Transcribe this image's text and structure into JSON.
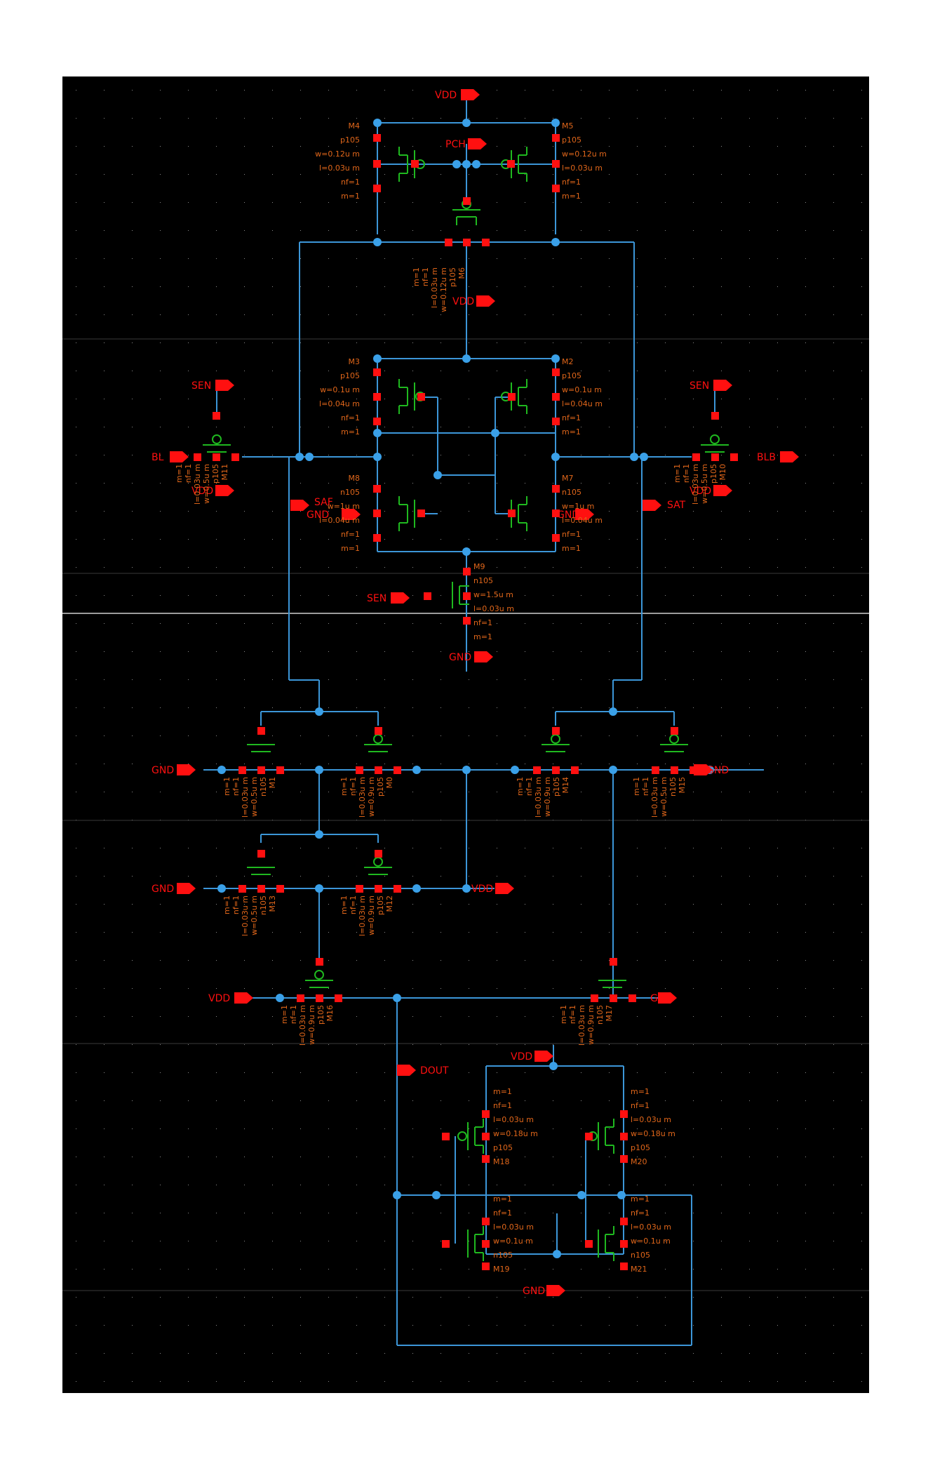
{
  "colors": {
    "background": "#000000",
    "wire": "#3c96d8",
    "device": "#1fb81f",
    "terminal": "#ff1010",
    "label": "#e0661a",
    "net_dot": "#3aa0e8"
  },
  "pins": [
    {
      "id": "vdd_top",
      "text": "VDD"
    },
    {
      "id": "pch",
      "text": "PCH"
    },
    {
      "id": "vdd_m6",
      "text": "VDD"
    },
    {
      "id": "sen_l",
      "text": "SEN"
    },
    {
      "id": "bl",
      "text": "BL"
    },
    {
      "id": "vdd_l",
      "text": "VDD"
    },
    {
      "id": "sen_r",
      "text": "SEN"
    },
    {
      "id": "blb",
      "text": "BLB"
    },
    {
      "id": "vdd_r",
      "text": "VDD"
    },
    {
      "id": "saf",
      "text": "SAF"
    },
    {
      "id": "gnd_sa_l",
      "text": "GND"
    },
    {
      "id": "gnd_sa_r",
      "text": "GND"
    },
    {
      "id": "sat",
      "text": "SAT"
    },
    {
      "id": "sen_m9",
      "text": "SEN"
    },
    {
      "id": "gnd_m9",
      "text": "GND"
    },
    {
      "id": "gnd_row1_l",
      "text": "GND"
    },
    {
      "id": "gnd_row1_r",
      "text": "GND"
    },
    {
      "id": "gnd_row2_l",
      "text": "GND"
    },
    {
      "id": "vdd_row2",
      "text": "VDD"
    },
    {
      "id": "vdd_row3",
      "text": "VDD"
    },
    {
      "id": "gnd_row3",
      "text": "GND"
    },
    {
      "id": "dout",
      "text": "DOUT"
    },
    {
      "id": "vdd_bot",
      "text": "VDD"
    },
    {
      "id": "gnd_bot",
      "text": "GND"
    }
  ],
  "devices": [
    {
      "id": "M4",
      "lines": [
        "M4",
        "p105",
        "w=0.12u m",
        "l=0.03u m",
        "nf=1",
        "m=1"
      ]
    },
    {
      "id": "M5",
      "lines": [
        "M5",
        "p105",
        "w=0.12u m",
        "l=0.03u m",
        "nf=1",
        "m=1"
      ]
    },
    {
      "id": "M6",
      "lines": [
        "m=1",
        "nf=1",
        "l=0.03u m",
        "w=0.12u m",
        "p105",
        "M6"
      ]
    },
    {
      "id": "M3",
      "lines": [
        "M3",
        "p105",
        "w=0.1u m",
        "l=0.04u m",
        "nf=1",
        "m=1"
      ]
    },
    {
      "id": "M2",
      "lines": [
        "M2",
        "p105",
        "w=0.1u m",
        "l=0.04u m",
        "nf=1",
        "m=1"
      ]
    },
    {
      "id": "M8",
      "lines": [
        "M8",
        "n105",
        "w=1u m",
        "l=0.04u m",
        "nf=1",
        "m=1"
      ]
    },
    {
      "id": "M7",
      "lines": [
        "M7",
        "n105",
        "w=1u m",
        "l=0.04u m",
        "nf=1",
        "m=1"
      ]
    },
    {
      "id": "M11",
      "lines": [
        "M11",
        "p105",
        "w=0.5u m",
        "l=0.03u m",
        "nf=1",
        "m=1"
      ]
    },
    {
      "id": "M10",
      "lines": [
        "m=1",
        "nf=1",
        "l=0.03u m",
        "w=0.5u m",
        "p105",
        "M10"
      ]
    },
    {
      "id": "M9",
      "lines": [
        "M9",
        "n105",
        "w=1.5u m",
        "l=0.03u m",
        "nf=1",
        "m=1"
      ]
    },
    {
      "id": "M1",
      "lines": [
        "m=1",
        "nf=1",
        "l=0.03u m",
        "w=0.5u m",
        "n105",
        "M1"
      ]
    },
    {
      "id": "M0",
      "lines": [
        "m=1",
        "nf=1",
        "l=0.03u m",
        "w=0.9u m",
        "p105",
        "M0"
      ]
    },
    {
      "id": "M14",
      "lines": [
        "M14",
        "p105",
        "w=0.9u m",
        "l=0.03u m",
        "nf=1",
        "m=1"
      ]
    },
    {
      "id": "M15",
      "lines": [
        "M15",
        "n105",
        "w=0.5u m",
        "l=0.03u m",
        "nf=1",
        "m=1"
      ]
    },
    {
      "id": "M13",
      "lines": [
        "m=1",
        "nf=1",
        "l=0.03u m",
        "w=0.5u m",
        "n105",
        "M13"
      ]
    },
    {
      "id": "M12",
      "lines": [
        "m=1",
        "nf=1",
        "l=0.03u m",
        "w=0.9u m",
        "p105",
        "M12"
      ]
    },
    {
      "id": "M16",
      "lines": [
        "m=1",
        "nf=1",
        "l=0.03u m",
        "w=0.9u m",
        "p105",
        "M16"
      ]
    },
    {
      "id": "M17",
      "lines": [
        "m=1",
        "nf=1",
        "l=0.03u m",
        "w=0.9u m",
        "n105",
        "M17"
      ]
    },
    {
      "id": "M18",
      "lines": [
        "m=1",
        "nf=1",
        "l=0.03u m",
        "w=0.18u m",
        "p105",
        "M18"
      ]
    },
    {
      "id": "M20",
      "lines": [
        "m=1",
        "nf=1",
        "l=0.03u m",
        "w=0.18u m",
        "p105",
        "M20"
      ]
    },
    {
      "id": "M19",
      "lines": [
        "m=1",
        "nf=1",
        "l=0.03u m",
        "w=0.1u m",
        "n105",
        "M19"
      ]
    },
    {
      "id": "M21",
      "lines": [
        "m=1",
        "nf=1",
        "l=0.03u m",
        "w=0.1u m",
        "n105",
        "M21"
      ]
    }
  ]
}
